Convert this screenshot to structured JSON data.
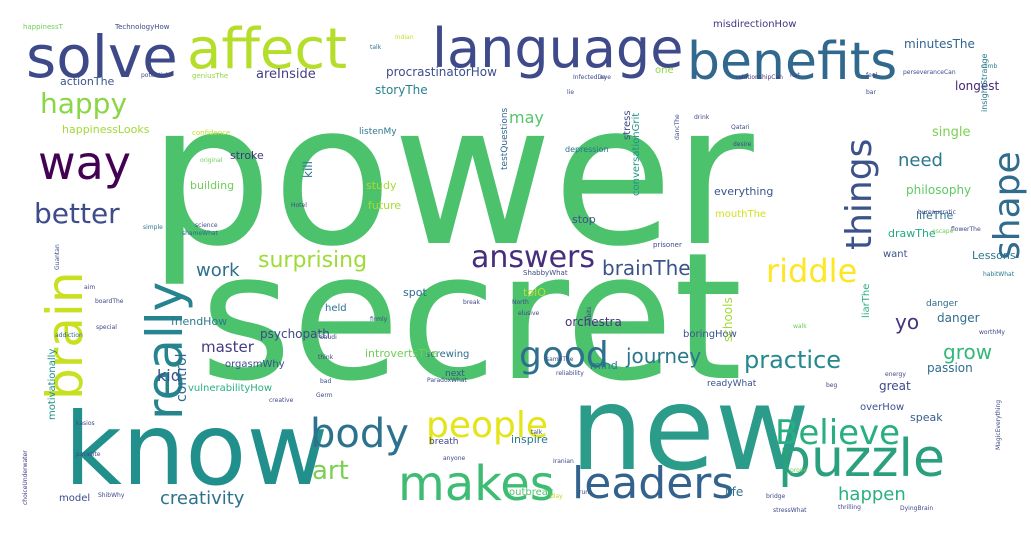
{
  "words": [
    {
      "text": "power",
      "color": "#4cc26c"
    },
    {
      "text": "secret",
      "color": "#4cc26c"
    },
    {
      "text": "new",
      "color": "#2b9b8a"
    },
    {
      "text": "know",
      "color": "#21908d"
    },
    {
      "text": "puzzle",
      "color": "#2ba07f"
    },
    {
      "text": "makes",
      "color": "#3fbc73"
    },
    {
      "text": "leaders",
      "color": "#33638d"
    },
    {
      "text": "solve",
      "color": "#3e4989"
    },
    {
      "text": "affect",
      "color": "#b5de2b"
    },
    {
      "text": "language",
      "color": "#3e4a89"
    },
    {
      "text": "benefits",
      "color": "#31688e"
    },
    {
      "text": "way",
      "color": "#440154"
    },
    {
      "text": "brain",
      "color": "#c8e020"
    },
    {
      "text": "really",
      "color": "#25848e"
    },
    {
      "text": "body",
      "color": "#2c728e"
    },
    {
      "text": "people",
      "color": "#e5e419"
    },
    {
      "text": "Believe",
      "color": "#29af7f"
    },
    {
      "text": "good",
      "color": "#2e6f8e"
    },
    {
      "text": "shape",
      "color": "#2f6c8e"
    },
    {
      "text": "things",
      "color": "#3b528b"
    },
    {
      "text": "answers",
      "color": "#472d7b"
    },
    {
      "text": "riddle",
      "color": "#fde725"
    },
    {
      "text": "happy",
      "color": "#8bd646"
    },
    {
      "text": "better",
      "color": "#3e4c8a"
    },
    {
      "text": "art",
      "color": "#7ad151"
    },
    {
      "text": "surprising",
      "color": "#a0da39"
    },
    {
      "text": "brainThe",
      "color": "#3b528b"
    },
    {
      "text": "work",
      "color": "#2d708e"
    },
    {
      "text": "practice",
      "color": "#23898e"
    },
    {
      "text": "journey",
      "color": "#2a778e"
    },
    {
      "text": "grow",
      "color": "#35b779"
    },
    {
      "text": "yo",
      "color": "#46327e"
    },
    {
      "text": "happen",
      "color": "#2ab07f"
    },
    {
      "text": "creativity",
      "color": "#2c718e"
    },
    {
      "text": "kid",
      "color": "#3b528b"
    },
    {
      "text": "control",
      "color": "#31688e"
    },
    {
      "text": "master",
      "color": "#443a83"
    },
    {
      "text": "need",
      "color": "#2a788e"
    },
    {
      "text": "may",
      "color": "#54c568"
    },
    {
      "text": "areInside",
      "color": "#433e85"
    },
    {
      "text": "procrastinatorHow",
      "color": "#3c4f8a"
    },
    {
      "text": "storyThe",
      "color": "#26828e"
    },
    {
      "text": "actionThe",
      "color": "#39568c"
    },
    {
      "text": "happinessLooks",
      "color": "#a2da37"
    },
    {
      "text": "longest",
      "color": "#482576"
    },
    {
      "text": "minutesThe",
      "color": "#32648e"
    },
    {
      "text": "misdirectionHow",
      "color": "#463480"
    },
    {
      "text": "one",
      "color": "#8fd744"
    },
    {
      "text": "philosophy",
      "color": "#5ec962"
    },
    {
      "text": "single",
      "color": "#7ad151"
    },
    {
      "text": "lifeThe",
      "color": "#2b748e"
    },
    {
      "text": "drawThe",
      "color": "#23a983"
    },
    {
      "text": "want",
      "color": "#3b528b"
    },
    {
      "text": "everything",
      "color": "#3a548c"
    },
    {
      "text": "mouthThe",
      "color": "#d0e11c"
    },
    {
      "text": "stop",
      "color": "#3b528b"
    },
    {
      "text": "testQuestions",
      "color": "#31688e"
    },
    {
      "text": "conversationGrit",
      "color": "#20928c"
    },
    {
      "text": "future",
      "color": "#a8db34"
    },
    {
      "text": "study",
      "color": "#a8db34"
    },
    {
      "text": "kill",
      "color": "#2a788e"
    },
    {
      "text": "stroke",
      "color": "#463480"
    },
    {
      "text": "building",
      "color": "#6ece58"
    },
    {
      "text": "listenMy",
      "color": "#2a788e"
    },
    {
      "text": "stress",
      "color": "#3e4989"
    },
    {
      "text": "depression",
      "color": "#2c728e"
    },
    {
      "text": "Lessons",
      "color": "#2a788e"
    },
    {
      "text": "danger",
      "color": "#2e6d8e"
    },
    {
      "text": "passion",
      "color": "#2f6c8e"
    },
    {
      "text": "great",
      "color": "#3e4a89"
    },
    {
      "text": "speak",
      "color": "#365d8d"
    },
    {
      "text": "life",
      "color": "#2c728e"
    },
    {
      "text": "overHow",
      "color": "#3b528b"
    },
    {
      "text": "readyWhat",
      "color": "#3b528b"
    },
    {
      "text": "boringHow",
      "color": "#3b528b"
    },
    {
      "text": "liarThe",
      "color": "#2ab07f"
    },
    {
      "text": "schools",
      "color": "#a2da37"
    },
    {
      "text": "orchestra",
      "color": "#46337f"
    },
    {
      "text": "friendHow",
      "color": "#2a788e"
    },
    {
      "text": "psychopath",
      "color": "#3e4989"
    },
    {
      "text": "held",
      "color": "#2c728e"
    },
    {
      "text": "spot",
      "color": "#2f6c8e"
    },
    {
      "text": "screwing",
      "color": "#2f6c8e"
    },
    {
      "text": "orgasmWhy",
      "color": "#3b528b"
    },
    {
      "text": "introvertsThe",
      "color": "#6ece58"
    },
    {
      "text": "vulnerabilityHow",
      "color": "#2ab07f"
    },
    {
      "text": "motivationally",
      "color": "#20928c"
    },
    {
      "text": "inspire",
      "color": "#2a788e"
    },
    {
      "text": "breath",
      "color": "#3e4989"
    },
    {
      "text": "outbreak",
      "color": "#50c46a"
    },
    {
      "text": "model",
      "color": "#3e4989"
    },
    {
      "text": "next",
      "color": "#3b528b"
    },
    {
      "text": "mind",
      "color": "#2a788e"
    },
    {
      "text": "toIO",
      "color": "#b5de2b"
    },
    {
      "text": "danger",
      "color": "#2e6d8e"
    },
    {
      "text": "TechnologyHow",
      "color": "#3e4989"
    },
    {
      "text": "happinessT",
      "color": "#6ece58"
    },
    {
      "text": "potential",
      "color": "#3e4989"
    },
    {
      "text": "geniusThe",
      "color": "#8fd744"
    },
    {
      "text": "Indian",
      "color": "#c2df23"
    },
    {
      "text": "talk",
      "color": "#2c728e"
    },
    {
      "text": "relationshipCan",
      "color": "#46337f"
    },
    {
      "text": "perseveranceCan",
      "color": "#3e4989"
    },
    {
      "text": "insightStrange",
      "color": "#2a788e"
    },
    {
      "text": "climb",
      "color": "#2a788e"
    },
    {
      "text": "feel",
      "color": "#3e4989"
    },
    {
      "text": "confidence",
      "color": "#c2df23"
    },
    {
      "text": "original",
      "color": "#6ece58"
    },
    {
      "text": "science",
      "color": "#3e4989"
    },
    {
      "text": "simple",
      "color": "#2a788e"
    },
    {
      "text": "shameWhat",
      "color": "#31688e"
    },
    {
      "text": "prisoner",
      "color": "#3e4989"
    },
    {
      "text": "ShabbyWhat",
      "color": "#3e4989"
    },
    {
      "text": "habitWhat",
      "color": "#2a788e"
    },
    {
      "text": "escape",
      "color": "#6ece58"
    },
    {
      "text": "special",
      "color": "#3e4989"
    },
    {
      "text": "addiction",
      "color": "#31688e"
    },
    {
      "text": "boardThe",
      "color": "#3e4989"
    },
    {
      "text": "elusive",
      "color": "#3e4989"
    },
    {
      "text": "North",
      "color": "#3e4989"
    },
    {
      "text": "break",
      "color": "#3e4989"
    },
    {
      "text": "Saudi",
      "color": "#3e4989"
    },
    {
      "text": "think",
      "color": "#3e4989"
    },
    {
      "text": "bad",
      "color": "#3e4989"
    },
    {
      "text": "creative",
      "color": "#3e4989"
    },
    {
      "text": "Germ",
      "color": "#3e4989"
    },
    {
      "text": "anyone",
      "color": "#3e4989"
    },
    {
      "text": "Iranian",
      "color": "#3e4989"
    },
    {
      "text": "ParadoxWhat",
      "color": "#3e4989"
    },
    {
      "text": "bridge",
      "color": "#3e4989"
    },
    {
      "text": "stressWhat",
      "color": "#3e4989"
    },
    {
      "text": "DyingBrain",
      "color": "#3e4989"
    },
    {
      "text": "thrilling",
      "color": "#3e4989"
    },
    {
      "text": "ShibWhy",
      "color": "#3e4989"
    },
    {
      "text": "prove",
      "color": "#6ece58"
    },
    {
      "text": "run",
      "color": "#3e4989"
    },
    {
      "text": "play",
      "color": "#b5de2b"
    },
    {
      "text": "choiceUnderwater",
      "color": "#463480"
    },
    {
      "text": "Guantan",
      "color": "#3e4989"
    },
    {
      "text": "worthMy",
      "color": "#3e4989"
    },
    {
      "text": "walk",
      "color": "#6ece58"
    },
    {
      "text": "Qatari",
      "color": "#3e4989"
    },
    {
      "text": "desire",
      "color": "#3e4989"
    },
    {
      "text": "drink",
      "color": "#3e4989"
    },
    {
      "text": "dancThe",
      "color": "#3e4989"
    },
    {
      "text": "hat",
      "color": "#3e4989"
    },
    {
      "text": "bar",
      "color": "#3e4989"
    },
    {
      "text": "eye",
      "color": "#3e4989"
    },
    {
      "text": "InfectedDe",
      "color": "#3e4989"
    },
    {
      "text": "lie",
      "color": "#3e4989"
    },
    {
      "text": "habits",
      "color": "#3e4989"
    },
    {
      "text": "reliability",
      "color": "#3e4989"
    },
    {
      "text": "energy",
      "color": "#3e4989"
    },
    {
      "text": "beg",
      "color": "#3e4989"
    },
    {
      "text": "MagicEverything",
      "color": "#3e4989"
    },
    {
      "text": "Hotel",
      "color": "#3e4989"
    },
    {
      "text": "bureaucratic",
      "color": "#3e4989"
    },
    {
      "text": "flowerThe",
      "color": "#3e4989"
    },
    {
      "text": "firmly",
      "color": "#3e4989"
    },
    {
      "text": "sameThe",
      "color": "#3e4989"
    },
    {
      "text": "talk",
      "color": "#3e4989"
    },
    {
      "text": "kasios",
      "color": "#3e4989"
    },
    {
      "text": "parasite",
      "color": "#3e4989"
    },
    {
      "text": "aim",
      "color": "#3e4989"
    }
  ]
}
